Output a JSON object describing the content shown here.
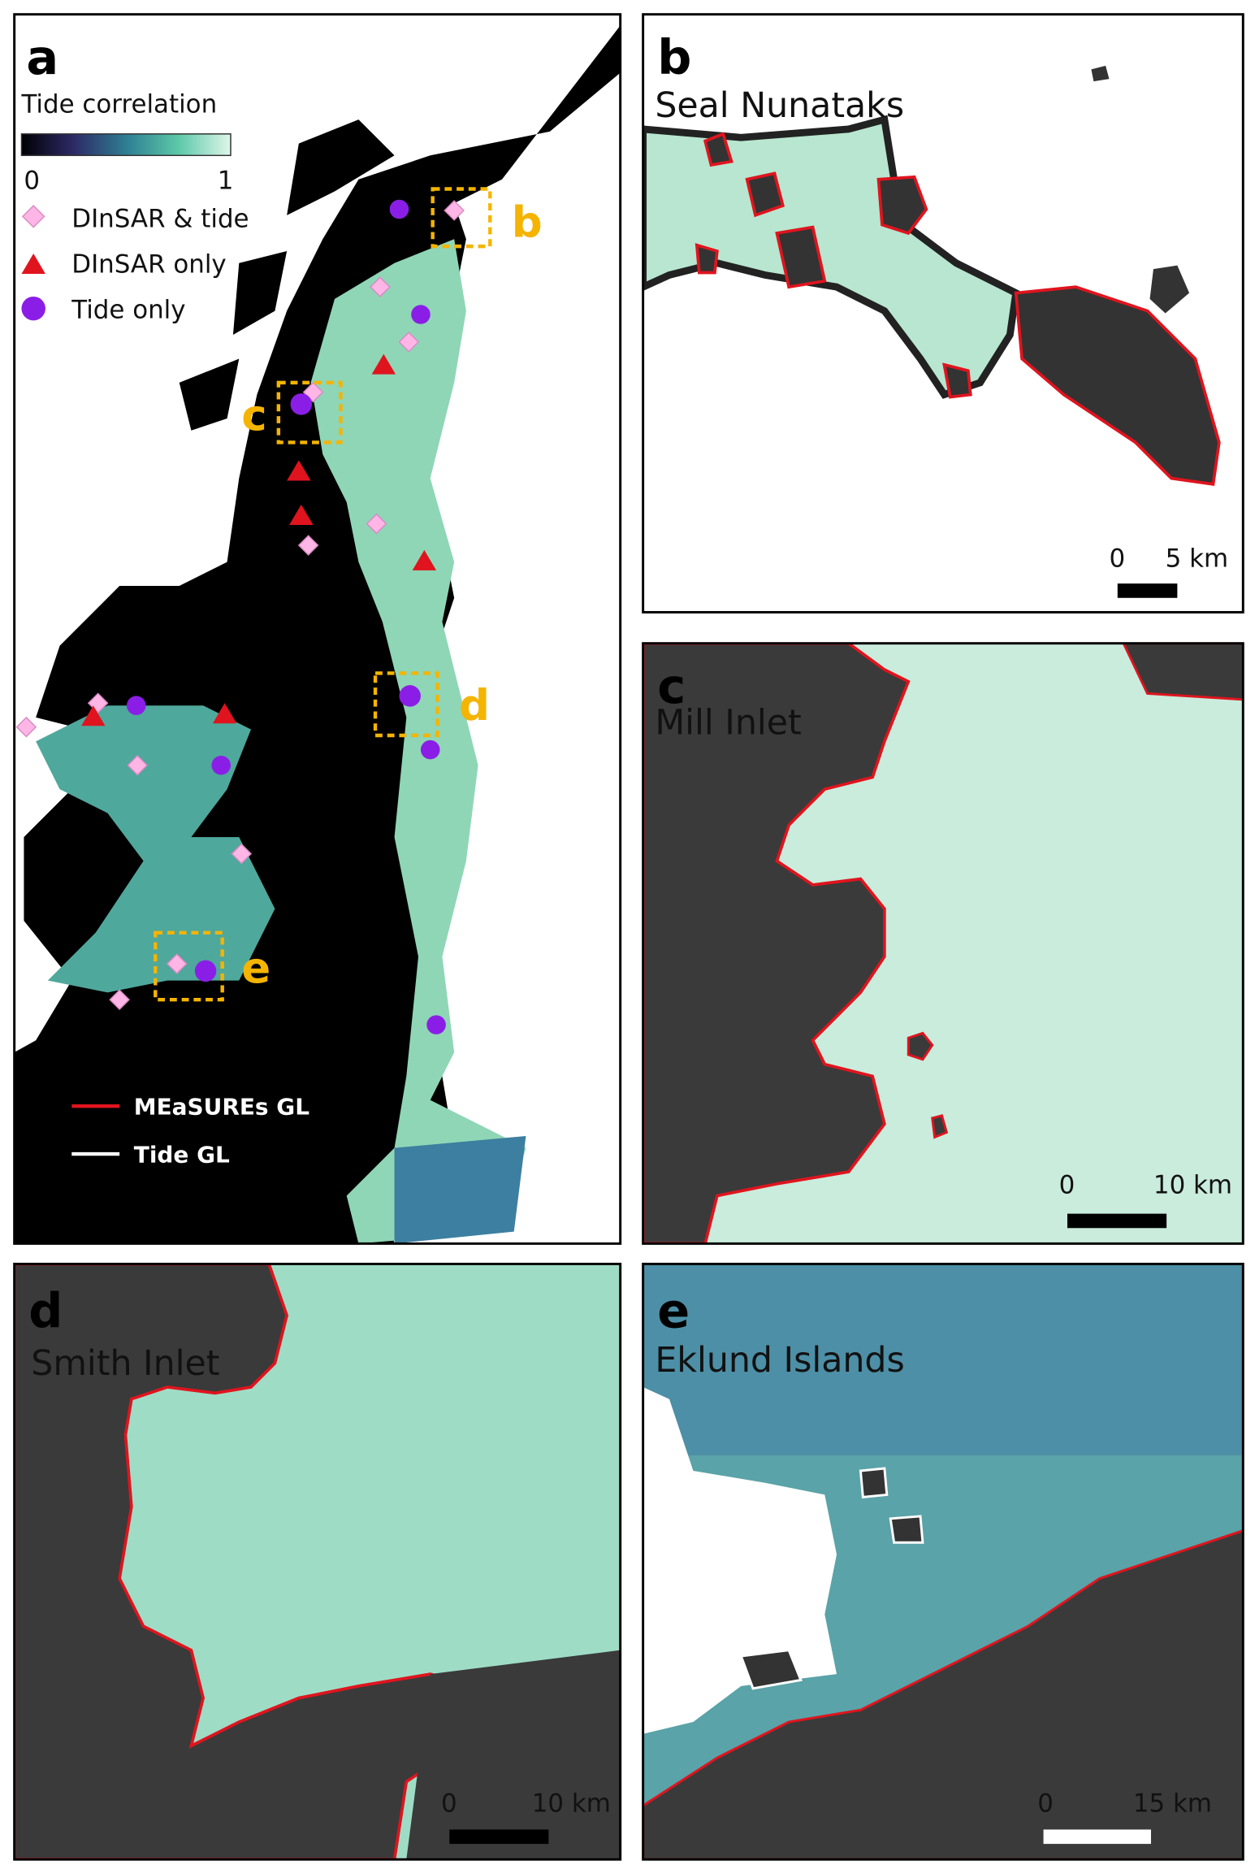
{
  "panels": [
    {
      "label": "a",
      "title": "Tide correlation",
      "colorbar_ticks": [
        0,
        1
      ],
      "legend": [
        "DInSAR & tide",
        "DInSAR only",
        "Tide only"
      ],
      "line_legend": [
        "MEaSUREs GL",
        "Tide GL"
      ],
      "box_labels": [
        "b",
        "c",
        "d",
        "e"
      ]
    },
    {
      "label": "b",
      "title": "Seal Nunataks",
      "scale_bar": [
        "0",
        "5 km"
      ]
    },
    {
      "label": "c",
      "title": "Mill Inlet",
      "scale_bar": [
        "0",
        "10 km"
      ]
    },
    {
      "label": "d",
      "title": "Smith Inlet",
      "scale_bar": [
        "0",
        "10 km"
      ]
    },
    {
      "label": "e",
      "title": "Eklund Islands",
      "scale_bar": [
        "0",
        "15 km"
      ]
    }
  ]
}
